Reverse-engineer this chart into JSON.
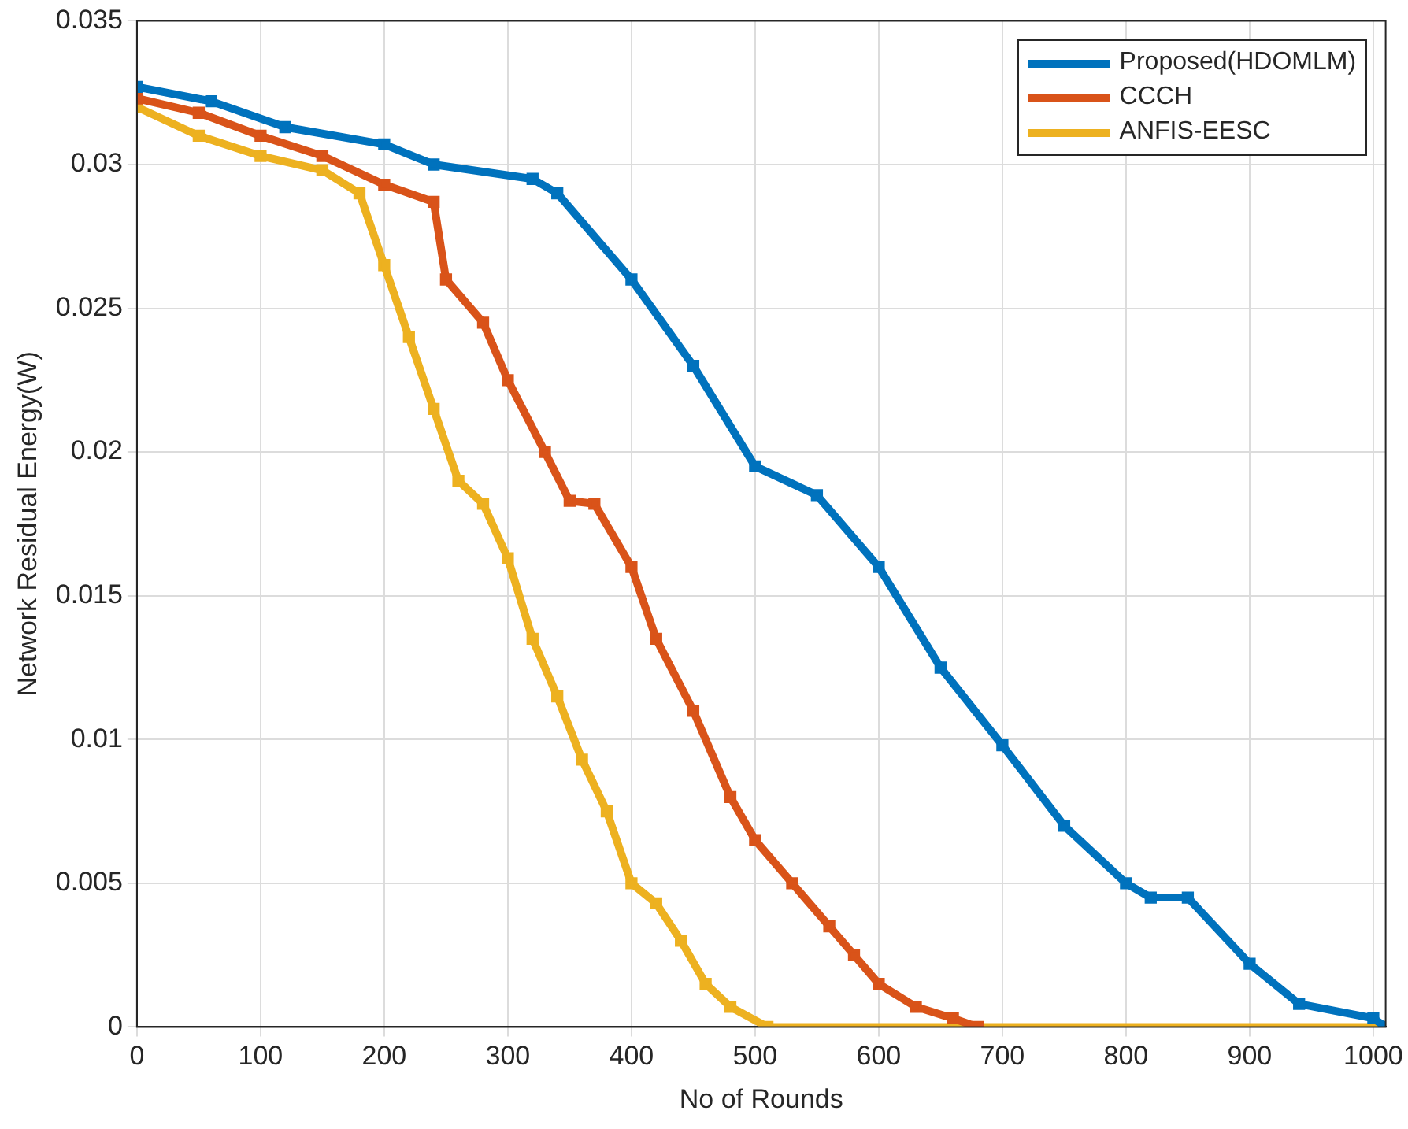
{
  "chart_data": {
    "type": "line",
    "xlabel": "No of Rounds",
    "ylabel": "Network Residual Energy(W)",
    "xlim": [
      0,
      1010
    ],
    "xticks": [
      0,
      100,
      200,
      300,
      400,
      500,
      600,
      700,
      800,
      900,
      1000
    ],
    "ylim": [
      0,
      0.035
    ],
    "yticks": [
      0,
      0.005,
      0.01,
      0.015,
      0.02,
      0.025,
      0.03,
      0.035
    ],
    "grid": true,
    "legend": "top right",
    "marker": "square",
    "line_style": "solid",
    "series": [
      {
        "name": "Proposed(HDOMLM)",
        "color": "#0072bd",
        "x": [
          0,
          60,
          120,
          200,
          240,
          320,
          340,
          400,
          450,
          500,
          550,
          600,
          650,
          700,
          750,
          800,
          820,
          850,
          900,
          940,
          1000,
          1010
        ],
        "values": [
          0.0327,
          0.0322,
          0.0313,
          0.0307,
          0.03,
          0.0295,
          0.029,
          0.026,
          0.023,
          0.0195,
          0.0185,
          0.016,
          0.0125,
          0.0098,
          0.007,
          0.005,
          0.0045,
          0.0045,
          0.0022,
          0.0008,
          0.0003,
          0
        ]
      },
      {
        "name": "CCCH",
        "color": "#d95319",
        "x": [
          0,
          50,
          100,
          150,
          200,
          240,
          250,
          280,
          300,
          330,
          350,
          370,
          400,
          420,
          450,
          480,
          500,
          530,
          560,
          580,
          600,
          630,
          660,
          680
        ],
        "values": [
          0.0323,
          0.0318,
          0.031,
          0.0303,
          0.0293,
          0.0287,
          0.026,
          0.0245,
          0.0225,
          0.02,
          0.0183,
          0.0182,
          0.016,
          0.0135,
          0.011,
          0.008,
          0.0065,
          0.005,
          0.0035,
          0.0025,
          0.0015,
          0.0007,
          0.0003,
          0
        ]
      },
      {
        "name": "ANFIS-EESC",
        "color": "#edb120",
        "x": [
          0,
          50,
          100,
          150,
          180,
          200,
          220,
          240,
          260,
          280,
          300,
          320,
          340,
          360,
          380,
          400,
          420,
          440,
          460,
          480,
          510,
          1010
        ],
        "values": [
          0.032,
          0.031,
          0.0303,
          0.0298,
          0.029,
          0.0265,
          0.024,
          0.0215,
          0.019,
          0.0182,
          0.0163,
          0.0135,
          0.0115,
          0.0093,
          0.0075,
          0.005,
          0.0043,
          0.003,
          0.0015,
          0.0007,
          0,
          0
        ]
      }
    ]
  }
}
